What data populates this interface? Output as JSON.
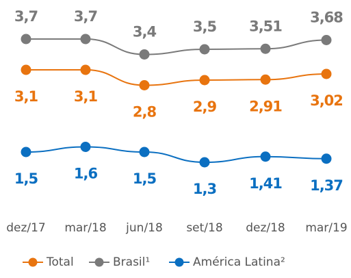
{
  "chart_data": {
    "type": "line",
    "categories": [
      "dez/17",
      "mar/18",
      "jun/18",
      "set/18",
      "dez/18",
      "mar/19"
    ],
    "series": [
      {
        "name": "Total",
        "color": "#e8740f",
        "values": [
          3.1,
          3.1,
          2.8,
          2.9,
          2.91,
          3.02
        ],
        "value_labels": [
          "3,1",
          "3,1",
          "2,8",
          "2,9",
          "2,91",
          "3,02"
        ]
      },
      {
        "name": "Brasil¹",
        "color": "#7a7a7a",
        "values": [
          3.7,
          3.7,
          3.4,
          3.5,
          3.51,
          3.68
        ],
        "value_labels": [
          "3,7",
          "3,7",
          "3,4",
          "3,5",
          "3,51",
          "3,68"
        ]
      },
      {
        "name": "América Latina²",
        "color": "#0b6fc1",
        "values": [
          1.5,
          1.6,
          1.5,
          1.3,
          1.41,
          1.37
        ],
        "value_labels": [
          "1,5",
          "1,6",
          "1,5",
          "1,3",
          "1,41",
          "1,37"
        ]
      }
    ]
  }
}
